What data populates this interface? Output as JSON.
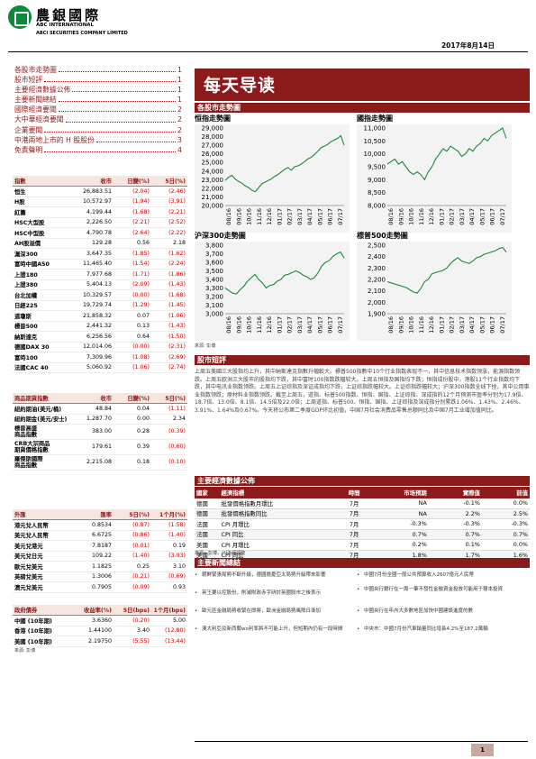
{
  "header": {
    "brand_cn": "農銀國際",
    "brand_en1": "ABC INTERNATIONAL",
    "brand_en2": "ABCI SECURITIES COMPANY LIMITED",
    "date": "2017年8月14日"
  },
  "toc": [
    {
      "label": "各股市走勢圖",
      "page": "1"
    },
    {
      "label": "股市短評",
      "page": "1"
    },
    {
      "label": "主要經濟數據公佈",
      "page": "1"
    },
    {
      "label": "主要新聞總結",
      "page": "1"
    },
    {
      "label": "國際經濟要聞",
      "page": "2"
    },
    {
      "label": "大中華經濟要聞",
      "page": "2"
    },
    {
      "label": "企業要聞",
      "page": "2"
    },
    {
      "label": "中港兩地上市的 H 股股份",
      "page": "3"
    },
    {
      "label": "免責聲明",
      "page": "4"
    }
  ],
  "indices": {
    "headers": [
      "指數",
      "收市",
      "日變(%)",
      "5日(%)"
    ],
    "rows": [
      [
        "恒生",
        "26,883.51",
        "(2.04)",
        "(2.46)"
      ],
      [
        "H股",
        "10,572.97",
        "(1.94)",
        "(3.91)"
      ],
      [
        "紅籌",
        "4,199.44",
        "(1.68)",
        "(2.21)"
      ],
      [
        "HSC大型股",
        "2,226.50",
        "(2.21)",
        "(2.52)"
      ],
      [
        "HSC中型股",
        "4,790.78",
        "(2.64)",
        "(2.22)"
      ],
      [
        "AH股溢價",
        "129.28",
        "0.56",
        "2.18"
      ],
      [
        "滬深300",
        "3,647.35",
        "(1.85)",
        "(1.62)"
      ],
      [
        "富時中國A50",
        "11,465.40",
        "(1.54)",
        "(2.24)"
      ],
      [
        "上證180",
        "7,977.68",
        "(1.71)",
        "(1.86)"
      ],
      [
        "上證380",
        "5,404.13",
        "(2.09)",
        "(1.43)"
      ],
      [
        "台北加權",
        "10,329.57",
        "(0.00)",
        "(1.68)"
      ],
      [
        "日經225",
        "19,729.74",
        "(1.29)",
        "(1.45)"
      ],
      [
        "道瓊斯",
        "21,858.32",
        "0.07",
        "(1.06)"
      ],
      [
        "標普500",
        "2,441.32",
        "0.13",
        "(1.43)"
      ],
      [
        "納斯達克",
        "6,256.56",
        "0.64",
        "(1.50)"
      ],
      [
        "德國DAX 30",
        "12,014.06",
        "(0.00)",
        "(2.31)"
      ],
      [
        "富時100",
        "7,309.96",
        "(1.08)",
        "(2.69)"
      ],
      [
        "法國CAC 40",
        "5,060.92",
        "(1.06)",
        "(2.74)"
      ]
    ]
  },
  "commodities": {
    "headers": [
      "商品期貨指數",
      "收市",
      "日變(%)",
      "5日(%)"
    ],
    "rows": [
      [
        "紐約期油(美元/桶)",
        "48.84",
        "0.04",
        "(1.11)"
      ],
      [
        "紐約期金(美元/安士)",
        "1,287.70",
        "0.00",
        "2.34"
      ],
      [
        "標普高盛\n商品指數",
        "383.00",
        "0.28",
        "(0.39)"
      ],
      [
        "CRB大宗商品\n期貨價格指數",
        "179.61",
        "0.39",
        "(0.60)"
      ],
      [
        "羅傑斯國際\n商品指數",
        "2,215.08",
        "0.18",
        "(0.10)"
      ]
    ]
  },
  "fx": {
    "headers": [
      "外匯",
      "匯率",
      "5日(%)",
      "1个月(%)"
    ],
    "rows": [
      [
        "港元兌人民幣",
        "0.8534",
        "(0.87)",
        "(1.58)"
      ],
      [
        "美元兌人民幣",
        "6.6725",
        "(0.86)",
        "(1.40)"
      ],
      [
        "美元兌港元",
        "7.8187",
        "(0.01)",
        "0.19"
      ],
      [
        "美元兌日元",
        "109.22",
        "(1.40)",
        "(3.03)"
      ],
      [
        "歐元兌美元",
        "1.1825",
        "0.25",
        "3.10"
      ],
      [
        "英磅兌美元",
        "1.3006",
        "(0.21)",
        "(0.69)"
      ],
      [
        "澳元兌美元",
        "0.7905",
        "(0.09)",
        "0.93"
      ]
    ]
  },
  "bonds": {
    "headers": [
      "政府債券",
      "收益率(%)",
      "5日(bps)",
      "1个月(bps)"
    ],
    "rows": [
      [
        "中國 (10年期)",
        "3.6360",
        "(0.20)",
        "5.00"
      ],
      [
        "香港 (10年期)",
        "1.44100",
        "3.40",
        "(12.80)"
      ],
      [
        "美國 (10年期)",
        "2.19750",
        "(5.55)",
        "(13.44)"
      ]
    ],
    "source": "來源: 彭博"
  },
  "banner_title": "每天导读",
  "charts_section": "各股市走勢圖",
  "charts": [
    {
      "title": "恒指走勢圖",
      "type": "line",
      "ylim": [
        20000,
        29000
      ],
      "yticks": [
        "29,000",
        "28,000",
        "27,000",
        "26,000",
        "25,000",
        "24,000",
        "23,000",
        "22,000",
        "21,000",
        "20,000"
      ],
      "xticks": [
        "08/16",
        "09/16",
        "10/16",
        "11/16",
        "12/16",
        "01/17",
        "02/17",
        "03/17",
        "04/17",
        "05/17",
        "06/17",
        "07/17"
      ],
      "series": [
        {
          "values": [
            22900,
            23300,
            23500,
            23100,
            22800,
            22600,
            22300,
            22100,
            21800,
            21600,
            22000,
            22500,
            22700,
            22900,
            23100,
            23400,
            23600,
            23900,
            24200,
            24400,
            24100,
            24500,
            24600,
            24800,
            25100,
            25400,
            25600,
            25900,
            26300,
            26700,
            26900,
            27100,
            27400,
            27600,
            27800,
            28100,
            27000
          ]
        }
      ]
    },
    {
      "title": "國指走勢圖",
      "type": "line",
      "ylim": [
        8000,
        11000
      ],
      "yticks": [
        "11,000",
        "10,500",
        "10,000",
        "9,500",
        "9,000",
        "8,500",
        "8,000"
      ],
      "xticks": [
        "08/16",
        "09/16",
        "10/16",
        "11/16",
        "12/16",
        "01/17",
        "02/17",
        "03/17",
        "04/17",
        "05/17",
        "06/17",
        "07/17"
      ],
      "series": [
        {
          "values": [
            9600,
            9700,
            9800,
            9600,
            9700,
            9500,
            9300,
            9200,
            9300,
            9200,
            9000,
            9300,
            9500,
            9800,
            10000,
            10200,
            10100,
            10300,
            10200,
            10100,
            9900,
            10000,
            10200,
            10100,
            10300,
            10400,
            10600,
            10500,
            10700,
            10800,
            10900,
            11000,
            10600
          ]
        }
      ]
    },
    {
      "title": "沪深300走勢圖",
      "type": "line",
      "ylim": [
        3000,
        3800
      ],
      "yticks": [
        "3,800",
        "3,700",
        "3,600",
        "3,500",
        "3,400",
        "3,300",
        "3,200",
        "3,100",
        "3,000"
      ],
      "xticks": [
        "08/16",
        "09/16",
        "10/16",
        "11/16",
        "12/16",
        "01/17",
        "02/17",
        "03/17",
        "04/17",
        "05/17",
        "06/17",
        "07/17"
      ],
      "series": [
        {
          "values": [
            3300,
            3270,
            3240,
            3230,
            3280,
            3320,
            3380,
            3420,
            3460,
            3400,
            3360,
            3300,
            3330,
            3340,
            3380,
            3400,
            3450,
            3460,
            3480,
            3500,
            3480,
            3450,
            3430,
            3400,
            3420,
            3480,
            3560,
            3600,
            3620,
            3670,
            3700,
            3720,
            3650
          ]
        }
      ]
    },
    {
      "title": "標普500走勢圖",
      "type": "line",
      "ylim": [
        1900,
        2500
      ],
      "yticks": [
        "2,500",
        "2,400",
        "2,300",
        "2,200",
        "2,100",
        "2,000",
        "1,900"
      ],
      "xticks": [
        "08/16",
        "09/16",
        "10/16",
        "11/16",
        "12/16",
        "01/17",
        "02/17",
        "03/17",
        "04/17",
        "05/17",
        "06/17",
        "07/17"
      ],
      "series": [
        {
          "values": [
            2180,
            2170,
            2160,
            2150,
            2140,
            2130,
            2110,
            2090,
            2080,
            2120,
            2180,
            2200,
            2250,
            2260,
            2270,
            2280,
            2300,
            2340,
            2370,
            2390,
            2360,
            2350,
            2340,
            2360,
            2390,
            2400,
            2420,
            2430,
            2440,
            2450,
            2470,
            2480,
            2440
          ]
        }
      ]
    }
  ],
  "charts_source": "來源: 彭博",
  "commentary_section": "股市短評",
  "commentary": "上周五美國三大股指均上升，其中納斯達克指數升幅較大。標普500指數中10个行业指数表现不一，其中信息技术指数领涨，能源指数领跌。上周五欧洲三大股市的股指均下跌，其中富时100指数跌幅较大。上周五恒指及国指均下跌；恒指成份股中，港股11个行业指数均下跌，其中电讯业指数领跌。上周五上证综指及深证成指均下跌，上证综指跌幅较大。上证综指跌幅较大；沪深300指数全线下挫，其中公用事业指数领跌；原材料业指数领跌。截至上周五，道指、标普500指数、恒指、国指、上证综指、深成指的12个月预测市盈率分别为17.9倍、18.7倍、13.0倍、8.1倍、14.5倍及22.0倍；上周道指、标普500、恒指、国指、上证综指及深成指分别累跌1.06%、1.43%、2.46%、3.91%、1.64%及0.67%。今天将公布第二季度GDP环比初值，中国7月社会消费品零售总额同比及中国7月工业增加值同比。",
  "econ_section": "主要經濟數據公佈",
  "econ": {
    "headers": [
      "國家",
      "經濟指標",
      "時間",
      "市场预期",
      "實際值",
      "前值"
    ],
    "rows": [
      [
        "德國",
        "批發價格指數月環比",
        "7月",
        "NA",
        "-0.1%",
        "0.0%"
      ],
      [
        "德國",
        "批發價格指數同比",
        "7月",
        "NA",
        "2.2%",
        "2.5%"
      ],
      [
        "法國",
        "CPI 月環比",
        "7月",
        "-0.3%",
        "-0.3%",
        "-0.3%"
      ],
      [
        "法國",
        "CPI 同比",
        "7月",
        "0.7%",
        "0.7%",
        "0.7%"
      ],
      [
        "美國",
        "CPI 月環比",
        "7月",
        "0.2%",
        "0.1%",
        "0.0%"
      ],
      [
        "美國",
        "CPI 同比",
        "7月",
        "1.8%",
        "1.7%",
        "1.6%"
      ]
    ],
    "source": "來源：彭博，(*)為經調整"
  },
  "news_section": "主要新聞總結",
  "news_left": [
    "朝鮮緊張局勢不斷升級，德國擔憂亞太局勢升級帶來影響",
    "英王要以控股份，削減財政赤字研討英國股市之後表示",
    "歐元區金融局勢收緊在即將，歐洲金融局勢風險日漸加",
    "澳大利亞及新西蘭wo利率將不可能上升，但短期內仍有一段時間"
  ],
  "news_right": [
    "中國7月份全國一般公共預算收入2607億元人民幣",
    "中國央行銀行在一周一筆不發性金融資金投放可能用于穩本投資",
    "中國央行在年內大多數地區加快中國建設進度的數",
    "中央市：中國7月份汽車銷量同比增長4.2%至187.2萬輛"
  ],
  "page_number": "1",
  "colors": {
    "brand_red": "#8b1a1a",
    "logo_green": "#0a8a3a",
    "negative": "#cc0000"
  }
}
